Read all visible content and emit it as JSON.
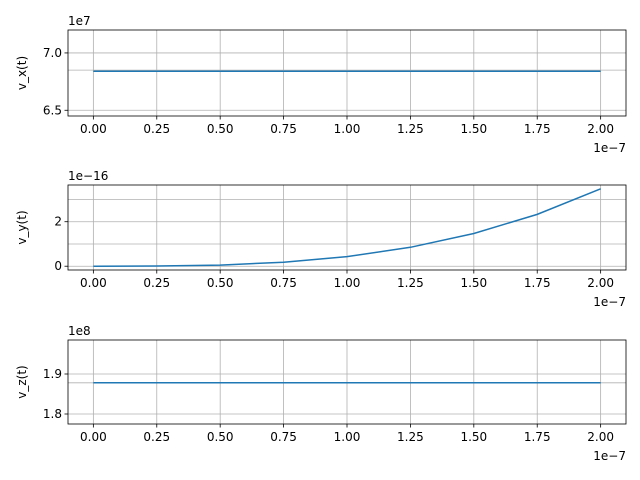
{
  "figure": {
    "background": "#ffffff"
  },
  "style": {
    "line_color": "#1f77b4",
    "grid_color": "#b0b0b0"
  },
  "chart_data": [
    {
      "type": "line",
      "ylabel": "v_x(t)",
      "xlabel": "",
      "x_offset_text": "1e−7",
      "y_offset_text": "1e7",
      "xlim": [
        -0.1,
        2.1
      ],
      "ylim": [
        6.45,
        7.2
      ],
      "x_ticks": [
        0.0,
        0.25,
        0.5,
        0.75,
        1.0,
        1.25,
        1.5,
        1.75,
        2.0
      ],
      "x_tick_labels": [
        "0.00",
        "0.25",
        "0.50",
        "0.75",
        "1.00",
        "1.25",
        "1.50",
        "1.75",
        "2.00"
      ],
      "y_ticks": [
        6.5,
        7.0
      ],
      "y_tick_labels": [
        "6.5",
        "7.0"
      ],
      "y_minor_ticks": [
        6.85
      ],
      "grid": true,
      "series": [
        {
          "x": [
            0,
            2.0
          ],
          "y": [
            6.84,
            6.84
          ]
        }
      ]
    },
    {
      "type": "line",
      "ylabel": "v_y(t)",
      "xlabel": "",
      "x_offset_text": "1e−7",
      "y_offset_text": "1e−16",
      "xlim": [
        -0.1,
        2.1
      ],
      "ylim": [
        -0.17,
        3.65
      ],
      "x_ticks": [
        0.0,
        0.25,
        0.5,
        0.75,
        1.0,
        1.25,
        1.5,
        1.75,
        2.0
      ],
      "x_tick_labels": [
        "0.00",
        "0.25",
        "0.50",
        "0.75",
        "1.00",
        "1.25",
        "1.50",
        "1.75",
        "2.00"
      ],
      "y_ticks": [
        0,
        2
      ],
      "y_tick_labels": [
        "0",
        "2"
      ],
      "y_minor_ticks": [
        1.0,
        3.0
      ],
      "grid": true,
      "series": [
        {
          "x": [
            0,
            0.25,
            0.5,
            0.75,
            1.0,
            1.25,
            1.5,
            1.75,
            2.0
          ],
          "y": [
            0,
            0.007,
            0.05,
            0.18,
            0.43,
            0.85,
            1.47,
            2.33,
            3.48
          ]
        }
      ]
    },
    {
      "type": "line",
      "ylabel": "v_z(t)",
      "xlabel": "",
      "x_offset_text": "1e−7",
      "y_offset_text": "1e8",
      "xlim": [
        -0.1,
        2.1
      ],
      "ylim": [
        1.775,
        1.985
      ],
      "x_ticks": [
        0.0,
        0.25,
        0.5,
        0.75,
        1.0,
        1.25,
        1.5,
        1.75,
        2.0
      ],
      "x_tick_labels": [
        "0.00",
        "0.25",
        "0.50",
        "0.75",
        "1.00",
        "1.25",
        "1.50",
        "1.75",
        "2.00"
      ],
      "y_ticks": [
        1.8,
        1.9
      ],
      "y_tick_labels": [
        "1.8",
        "1.9"
      ],
      "y_minor_ticks": [
        1.878
      ],
      "grid": true,
      "series": [
        {
          "x": [
            0,
            2.0
          ],
          "y": [
            1.878,
            1.878
          ]
        }
      ]
    }
  ]
}
